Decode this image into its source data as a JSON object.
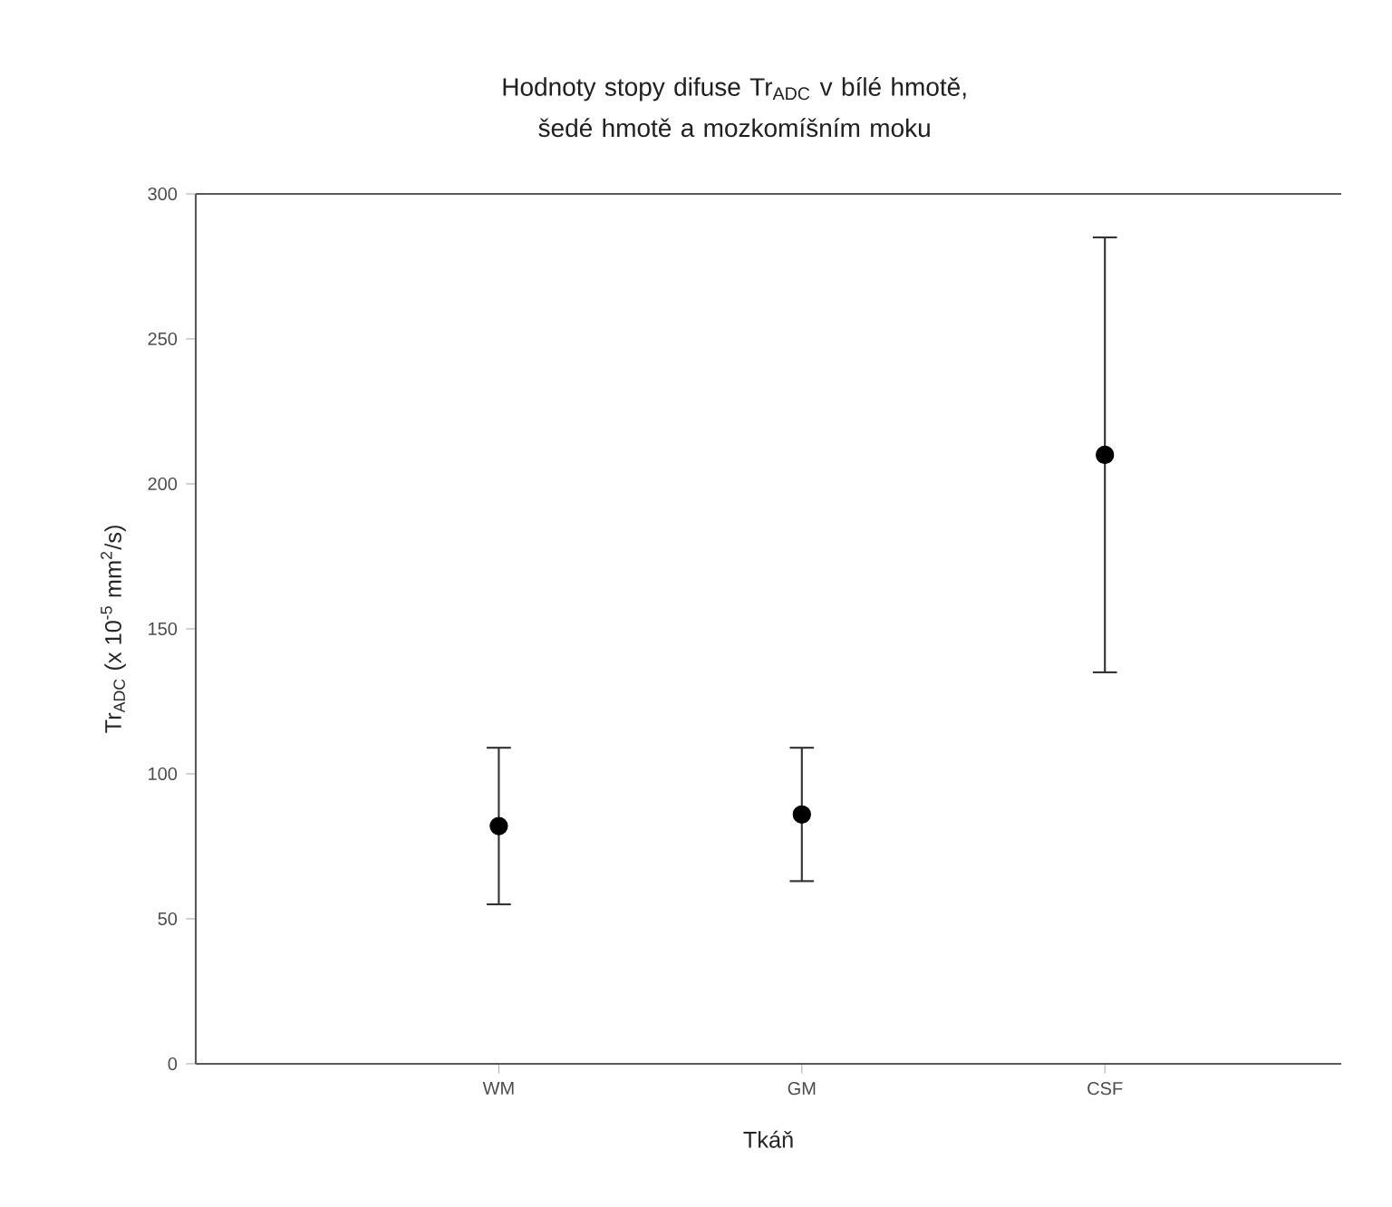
{
  "chart_data": {
    "type": "scatter",
    "title": "Hodnoty stopy difuse Tr$_{ADC}$ v bílé hmotě, šedé hmotě a mozkomíšním moku",
    "xlabel": "Tkáň",
    "ylabel": "Tr$_{ADC}$ (x 10$^{-5}$ mm$^{2}$/s)",
    "categories": [
      "WM",
      "GM",
      "CSF"
    ],
    "values": [
      82,
      86,
      210
    ],
    "errors": [
      [
        55,
        109
      ],
      [
        63,
        109
      ],
      [
        135,
        285
      ]
    ],
    "color": "#000000",
    "marker": "circle",
    "ylim": [
      0,
      300
    ],
    "yticks": [
      0,
      50,
      100,
      150,
      200,
      250,
      300
    ],
    "grid": false
  }
}
